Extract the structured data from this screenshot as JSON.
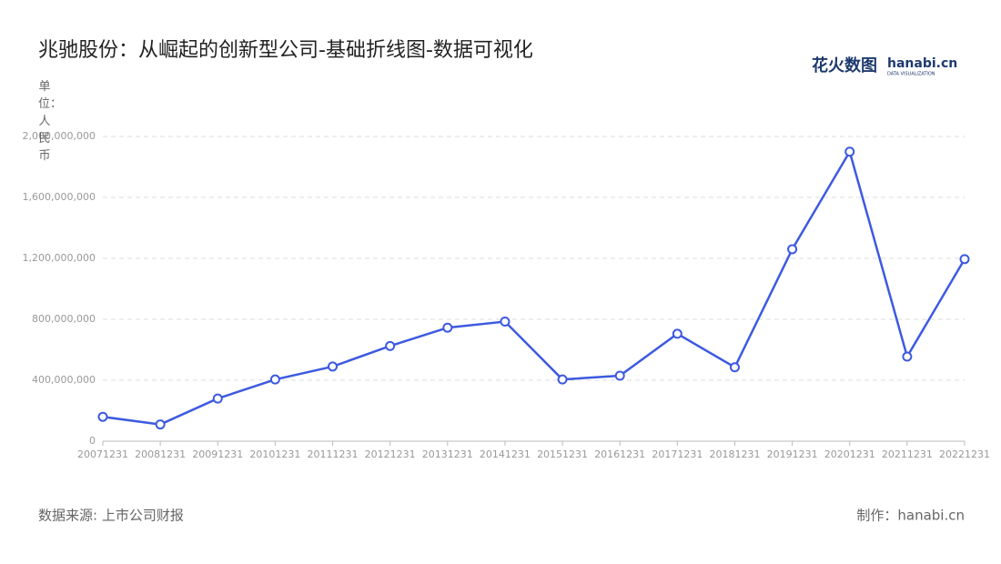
{
  "chart_data": {
    "type": "line",
    "title": "兆驰股份：从崛起的创新型公司-基础折线图-数据可视化",
    "y_label": "单位：人民币",
    "source": "数据来源: 上市公司财报",
    "credit": "制作：hanabi.cn",
    "logo": {
      "cn": "花火数图",
      "en": "hanabi.cn",
      "sub": "DATA VISUALIZATION"
    },
    "categories": [
      "20071231",
      "20081231",
      "20091231",
      "20101231",
      "20111231",
      "20121231",
      "20131231",
      "20141231",
      "20151231",
      "20161231",
      "20171231",
      "20181231",
      "20191231",
      "20201231",
      "20211231",
      "20221231"
    ],
    "values": [
      160000000,
      110000000,
      280000000,
      405000000,
      490000000,
      625000000,
      745000000,
      785000000,
      405000000,
      430000000,
      705000000,
      485000000,
      1260000000,
      1900000000,
      555000000,
      1195000000
    ],
    "color": "#3d5ae0",
    "ylim": [
      0,
      2000000000
    ],
    "yticks": [
      0,
      {
        "value": 400000000,
        "label": "400,000,000"
      },
      {
        "value": 800000000,
        "label": "800,000,000"
      },
      {
        "value": 1200000000,
        "label": "1,200,000,000"
      },
      {
        "value": 1600000000,
        "label": "1,600,000,000"
      },
      {
        "value": 2000000000,
        "label": "2,000,000,000"
      }
    ],
    "grid": true
  }
}
